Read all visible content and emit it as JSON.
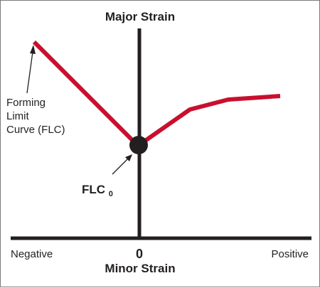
{
  "diagram": {
    "y_axis_title": "Major Strain",
    "x_axis_title": "Minor Strain",
    "x_axis_zero": "0",
    "x_axis_negative": "Negative",
    "x_axis_positive": "Positive",
    "curve_annotation_lines": [
      "Forming",
      "Limit",
      "Curve (FLC)"
    ],
    "point_label_main": "FLC",
    "point_label_subscript": "0",
    "colors": {
      "curve": "#c8102e",
      "axes": "#231f20",
      "point": "#231f20",
      "text": "#231f20",
      "border": "#7a7a7a"
    }
  }
}
